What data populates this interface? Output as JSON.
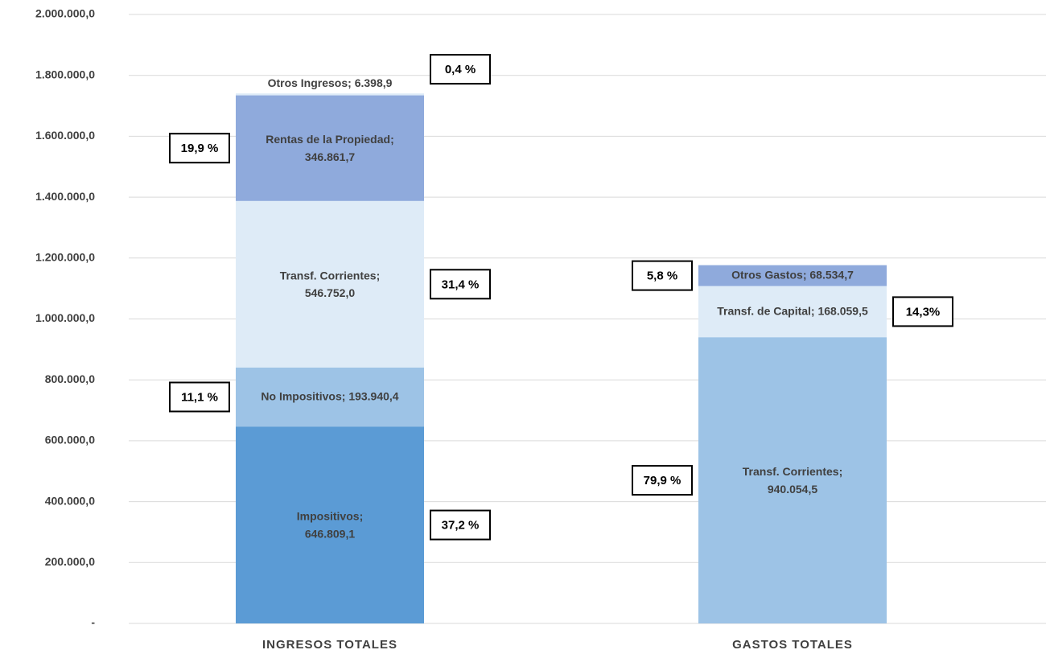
{
  "chart_data": {
    "type": "bar",
    "stacked": true,
    "categories": [
      "INGRESOS TOTALES",
      "GASTOS TOTALES"
    ],
    "label_separator": "; ",
    "series": [
      {
        "name": "Impositivos",
        "color": "#5b9bd5",
        "values": [
          646809.1,
          null
        ],
        "value_labels": [
          "646.809,1",
          null
        ],
        "share_labels": [
          "37,2 %",
          null
        ]
      },
      {
        "name": "No Impositivos",
        "color": "#9dc3e6",
        "values": [
          193940.4,
          null
        ],
        "value_labels": [
          "193.940,4",
          null
        ],
        "share_labels": [
          "11,1 %",
          null
        ]
      },
      {
        "name": "Transf. Corrientes",
        "color": "#deebf7",
        "values": [
          546752.0,
          null
        ],
        "value_labels": [
          "546.752,0",
          null
        ],
        "share_labels": [
          "31,4 %",
          null
        ]
      },
      {
        "name": "Rentas de la Propiedad",
        "color": "#8faadc",
        "values": [
          346861.7,
          null
        ],
        "value_labels": [
          "346.861,7",
          null
        ],
        "share_labels": [
          "19,9 %",
          null
        ]
      },
      {
        "name": "Otros Ingresos",
        "color": "#deebf7",
        "values": [
          6398.9,
          null
        ],
        "value_labels": [
          "6.398,9",
          null
        ],
        "share_labels": [
          "0,4 %",
          null
        ]
      },
      {
        "name": "Transf. Corrientes",
        "color": "#9dc3e6",
        "values": [
          null,
          940054.5
        ],
        "value_labels": [
          null,
          "940.054,5"
        ],
        "share_labels": [
          null,
          "79,9 %"
        ]
      },
      {
        "name": "Transf. de Capital",
        "color": "#deebf7",
        "values": [
          null,
          168059.5
        ],
        "value_labels": [
          null,
          "168.059,5"
        ],
        "share_labels": [
          null,
          "14,3%"
        ]
      },
      {
        "name": "Otros Gastos",
        "color": "#8faadc",
        "values": [
          null,
          68534.7
        ],
        "value_labels": [
          null,
          "68.534,7"
        ],
        "share_labels": [
          null,
          "5,8 %"
        ]
      }
    ],
    "ylim": [
      0,
      2000000
    ],
    "yticks": [
      {
        "value": 0,
        "label": "-"
      },
      {
        "value": 200000,
        "label": "200.000,0"
      },
      {
        "value": 400000,
        "label": "400.000,0"
      },
      {
        "value": 600000,
        "label": "600.000,0"
      },
      {
        "value": 800000,
        "label": "800.000,0"
      },
      {
        "value": 1000000,
        "label": "1.000.000,0"
      },
      {
        "value": 1200000,
        "label": "1.200.000,0"
      },
      {
        "value": 1400000,
        "label": "1.400.000,0"
      },
      {
        "value": 1600000,
        "label": "1.600.000,0"
      },
      {
        "value": 1800000,
        "label": "1.800.000,0"
      },
      {
        "value": 2000000,
        "label": "2.000.000,0"
      }
    ],
    "grid": true
  }
}
